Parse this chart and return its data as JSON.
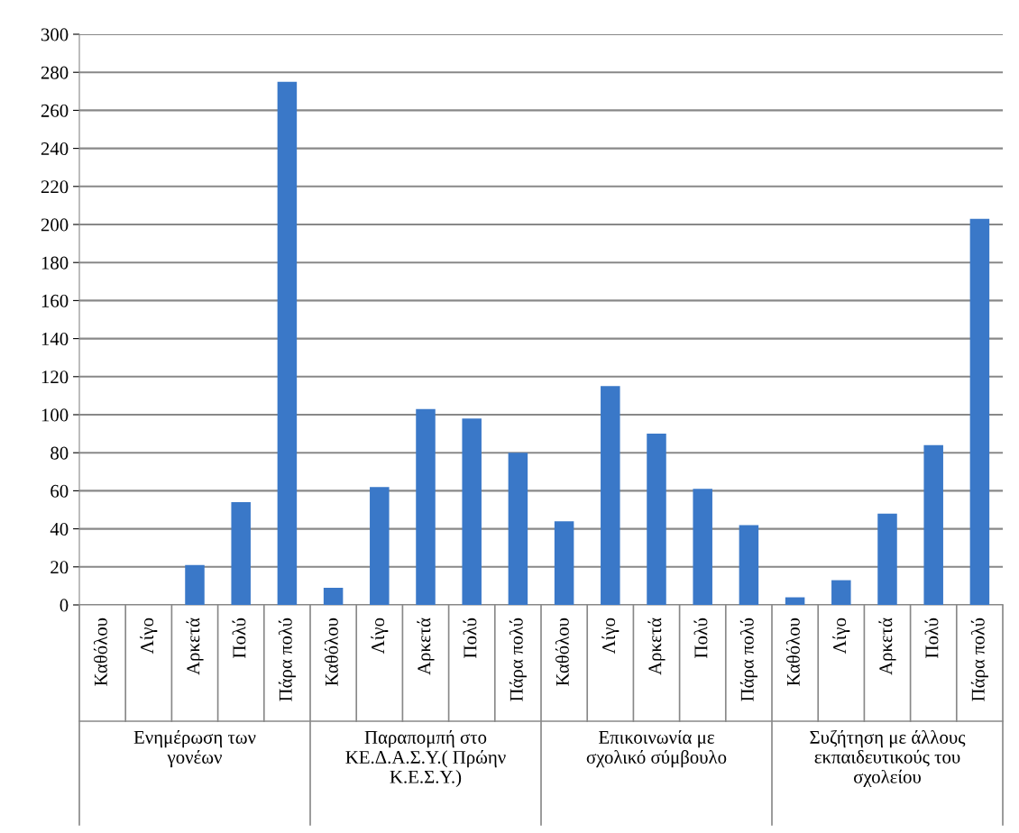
{
  "chart_data": {
    "type": "bar",
    "categories": [
      "Καθόλου",
      "Λίγο",
      "Αρκετά",
      "Πολύ",
      "Πάρα πολύ",
      "Καθόλου",
      "Λίγο",
      "Αρκετά",
      "Πολύ",
      "Πάρα πολύ",
      "Καθόλου",
      "Λίγο",
      "Αρκετά",
      "Πολύ",
      "Πάρα πολύ",
      "Καθόλου",
      "Λίγο",
      "Αρκετά",
      "Πολύ",
      "Πάρα πολύ"
    ],
    "values": [
      0,
      0,
      21,
      54,
      275,
      9,
      62,
      103,
      98,
      80,
      44,
      115,
      90,
      61,
      42,
      4,
      13,
      48,
      84,
      203
    ],
    "color": "#3a78c8",
    "annotations": [
      "Ενημέρωση των\nγονέων",
      "Παραπομπή στο\nΚΕ.Δ.Α.Σ.Υ.( Πρώην\nΚ.Ε.Σ.Υ.)",
      "Επικοινωνία με\nσχολικό σύμβουλο",
      "Συζήτηση με άλλους\nεκπαιδευτικούς του\nσχολείου"
    ],
    "ylim": [
      0,
      300
    ],
    "yticks": [
      0,
      20,
      40,
      60,
      80,
      100,
      120,
      140,
      160,
      180,
      200,
      220,
      240,
      260,
      280,
      300
    ],
    "grid": "y"
  }
}
